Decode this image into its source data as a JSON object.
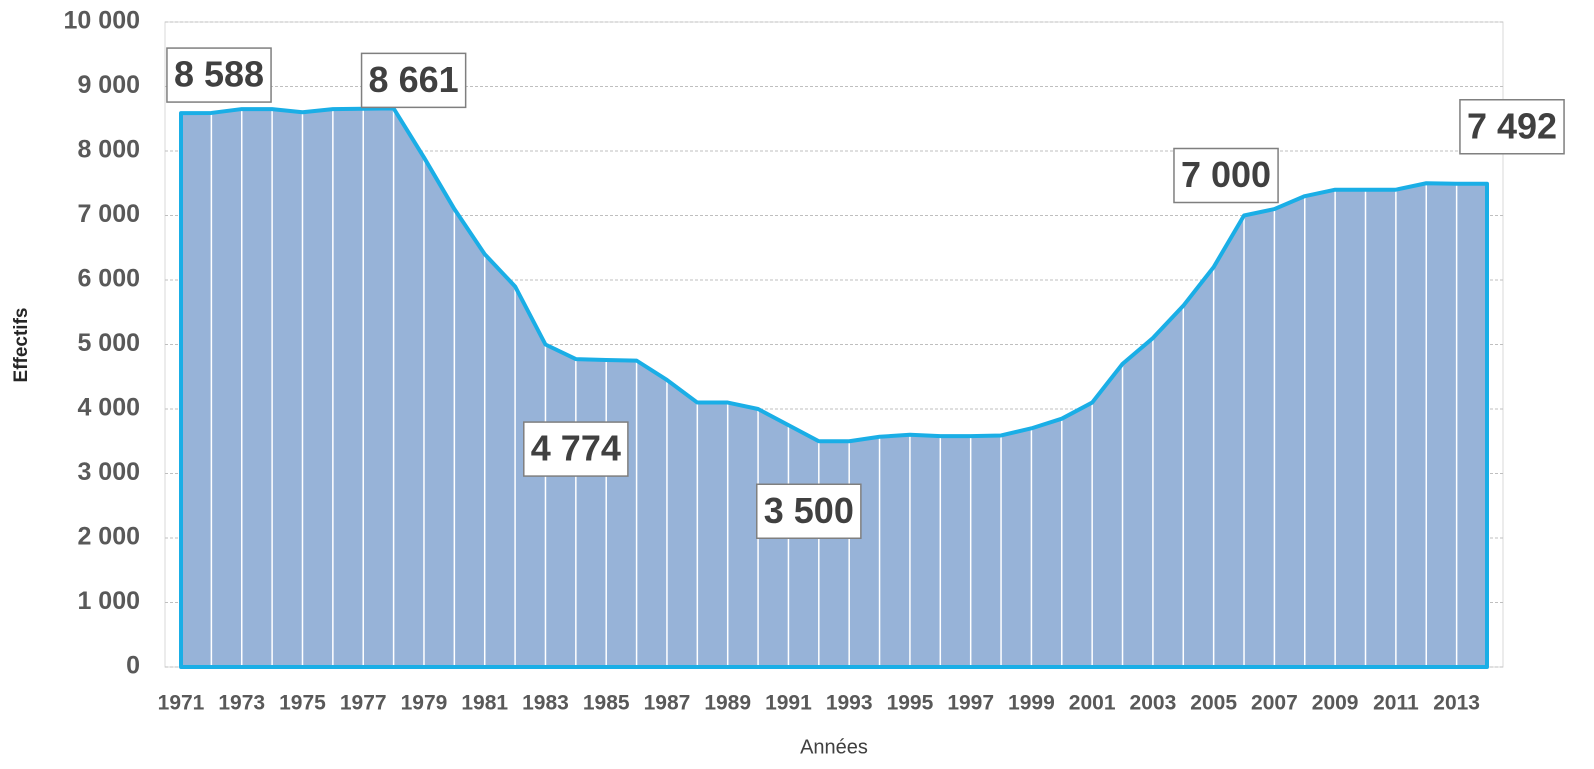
{
  "chart_data": {
    "type": "area",
    "y_label": "Effectifs",
    "x_label": "Années",
    "categories": [
      "1971",
      null,
      "1973",
      null,
      "1975",
      null,
      "1977",
      null,
      "1979",
      null,
      "1981",
      null,
      "1983",
      null,
      "1985",
      null,
      "1987",
      null,
      "1989",
      null,
      "1991",
      null,
      "1993",
      null,
      "1995",
      null,
      "1997",
      null,
      "1999",
      null,
      "2001",
      null,
      "2003",
      null,
      "2005",
      null,
      "2007",
      null,
      "2009",
      null,
      "2011",
      null,
      "2013",
      null
    ],
    "values": [
      8588,
      8590,
      8650,
      8650,
      8600,
      8650,
      8655,
      8661,
      7900,
      7100,
      6400,
      5900,
      5000,
      4774,
      4760,
      4750,
      4450,
      4100,
      4100,
      4000,
      3750,
      3500,
      3500,
      3570,
      3600,
      3580,
      3580,
      3590,
      3700,
      3850,
      4100,
      4700,
      5100,
      5600,
      6200,
      7000,
      7100,
      7300,
      7400,
      7400,
      7400,
      7500,
      7492,
      7492
    ],
    "value_labels": [
      "8 588",
      null,
      null,
      null,
      null,
      null,
      null,
      "8 661",
      null,
      null,
      null,
      null,
      null,
      "4 774",
      null,
      null,
      null,
      null,
      null,
      null,
      null,
      "3 500",
      null,
      null,
      null,
      null,
      null,
      null,
      null,
      null,
      null,
      null,
      null,
      null,
      null,
      "7 000",
      null,
      null,
      null,
      null,
      null,
      null,
      null,
      "7 492"
    ],
    "color": "#97b3d8",
    "line_color": "#1aaee6",
    "ylim": [
      0,
      10000
    ],
    "yticks": [
      0,
      {
        "value": 1000,
        "label": "1 000"
      },
      {
        "value": 2000,
        "label": "2 000"
      },
      {
        "value": 3000,
        "label": "3 000"
      },
      {
        "value": 4000,
        "label": "4 000"
      },
      {
        "value": 5000,
        "label": "5 000"
      },
      {
        "value": 6000,
        "label": "6 000"
      },
      {
        "value": 7000,
        "label": "7 000"
      },
      {
        "value": 8000,
        "label": "8 000"
      },
      {
        "value": 9000,
        "label": "9 000"
      },
      {
        "value": 10000,
        "label": "10 000"
      }
    ],
    "grid": true
  }
}
